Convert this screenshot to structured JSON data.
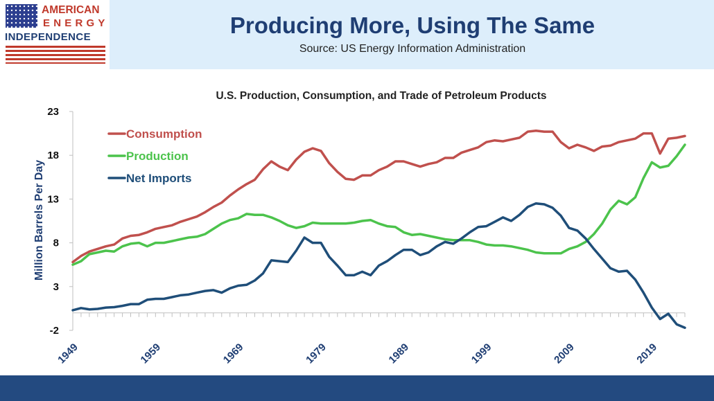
{
  "header": {
    "logo_line1": "AMERICAN",
    "logo_line2": "ENERGY",
    "logo_line3": "INDEPENDENCE",
    "title": "Producing More, Using The Same",
    "subtitle": "Source: US Energy Information Administration"
  },
  "colors": {
    "header_bg": "#ddeefb",
    "title": "#1f3e73",
    "footer": "#234a80",
    "consumption": "#c0504d",
    "production": "#4cc34c",
    "net_imports": "#1f4e79"
  },
  "chart_data": {
    "type": "line",
    "title": "U.S. Production, Consumption, and Trade of Petroleum Products",
    "ylabel": "Million Barrels Per Day",
    "xlabel": "",
    "ylim": [
      -2,
      23
    ],
    "yticks": [
      -2,
      3,
      8,
      13,
      18,
      23
    ],
    "xlim": [
      1949,
      2023
    ],
    "xticks": [
      1949,
      1959,
      1969,
      1979,
      1989,
      1999,
      2009,
      2019
    ],
    "legend_position": "top-left",
    "grid": false,
    "x": [
      1949,
      1950,
      1951,
      1952,
      1953,
      1954,
      1955,
      1956,
      1957,
      1958,
      1959,
      1960,
      1961,
      1962,
      1963,
      1964,
      1965,
      1966,
      1967,
      1968,
      1969,
      1970,
      1971,
      1972,
      1973,
      1974,
      1975,
      1976,
      1977,
      1978,
      1979,
      1980,
      1981,
      1982,
      1983,
      1984,
      1985,
      1986,
      1987,
      1988,
      1989,
      1990,
      1991,
      1992,
      1993,
      1994,
      1995,
      1996,
      1997,
      1998,
      1999,
      2000,
      2001,
      2002,
      2003,
      2004,
      2005,
      2006,
      2007,
      2008,
      2009,
      2010,
      2011,
      2012,
      2013,
      2014,
      2015,
      2016,
      2017,
      2018,
      2019,
      2020,
      2021,
      2022,
      2023
    ],
    "series": [
      {
        "name": "Consumption",
        "values": [
          5.8,
          6.5,
          7.0,
          7.3,
          7.6,
          7.8,
          8.5,
          8.8,
          8.9,
          9.2,
          9.6,
          9.8,
          10.0,
          10.4,
          10.7,
          11.0,
          11.5,
          12.1,
          12.6,
          13.4,
          14.1,
          14.7,
          15.2,
          16.4,
          17.3,
          16.7,
          16.3,
          17.5,
          18.4,
          18.8,
          18.5,
          17.1,
          16.1,
          15.3,
          15.2,
          15.7,
          15.7,
          16.3,
          16.7,
          17.3,
          17.3,
          17.0,
          16.7,
          17.0,
          17.2,
          17.7,
          17.7,
          18.3,
          18.6,
          18.9,
          19.5,
          19.7,
          19.6,
          19.8,
          20.0,
          20.7,
          20.8,
          20.7,
          20.7,
          19.5,
          18.8,
          19.2,
          18.9,
          18.5,
          19.0,
          19.1,
          19.5,
          19.7,
          19.9,
          20.5,
          20.5,
          18.2,
          19.9,
          20.0,
          20.2
        ]
      },
      {
        "name": "Production",
        "values": [
          5.5,
          5.9,
          6.7,
          6.9,
          7.1,
          7.0,
          7.6,
          7.9,
          8.0,
          7.6,
          8.0,
          8.0,
          8.2,
          8.4,
          8.6,
          8.7,
          9.0,
          9.6,
          10.2,
          10.6,
          10.8,
          11.3,
          11.2,
          11.2,
          10.9,
          10.5,
          10.0,
          9.7,
          9.9,
          10.3,
          10.2,
          10.2,
          10.2,
          10.2,
          10.3,
          10.5,
          10.6,
          10.2,
          9.9,
          9.8,
          9.2,
          8.9,
          9.0,
          8.8,
          8.6,
          8.4,
          8.3,
          8.3,
          8.3,
          8.1,
          7.8,
          7.7,
          7.7,
          7.6,
          7.4,
          7.2,
          6.9,
          6.8,
          6.8,
          6.8,
          7.3,
          7.6,
          8.1,
          9.0,
          10.2,
          11.8,
          12.8,
          12.4,
          13.2,
          15.4,
          17.2,
          16.6,
          16.8,
          17.9,
          19.2
        ]
      },
      {
        "name": "Net Imports",
        "values": [
          0.3,
          0.55,
          0.4,
          0.45,
          0.6,
          0.65,
          0.8,
          1.0,
          1.0,
          1.5,
          1.6,
          1.6,
          1.8,
          2.0,
          2.1,
          2.3,
          2.5,
          2.6,
          2.3,
          2.8,
          3.1,
          3.2,
          3.7,
          4.5,
          6.0,
          5.9,
          5.8,
          7.1,
          8.6,
          8.0,
          8.0,
          6.4,
          5.4,
          4.3,
          4.3,
          4.7,
          4.3,
          5.4,
          5.9,
          6.6,
          7.2,
          7.2,
          6.6,
          6.9,
          7.6,
          8.1,
          7.9,
          8.5,
          9.2,
          9.8,
          9.9,
          10.4,
          10.9,
          10.5,
          11.2,
          12.1,
          12.5,
          12.4,
          12.0,
          11.1,
          9.7,
          9.4,
          8.5,
          7.3,
          6.2,
          5.1,
          4.7,
          4.8,
          3.8,
          2.3,
          0.6,
          -0.7,
          -0.1,
          -1.3,
          -1.7
        ]
      }
    ]
  }
}
